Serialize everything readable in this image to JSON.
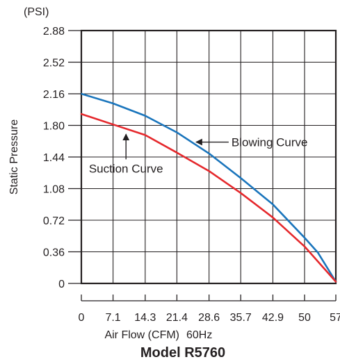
{
  "chart_data": {
    "type": "line",
    "title": "Model R5760",
    "xlabel": "Air Flow (CFM)",
    "xlabel_note": "60Hz",
    "ylabel": "Static Pressure",
    "yunit": "(PSI)",
    "x_ticks": [
      "0",
      "7.1",
      "14.3",
      "21.4",
      "28.6",
      "35.7",
      "42.9",
      "50",
      "57"
    ],
    "y_ticks": [
      "0",
      "0.36",
      "0.72",
      "1.08",
      "1.44",
      "1.80",
      "2.16",
      "2.52",
      "2.88"
    ],
    "xlim": [
      0,
      57
    ],
    "ylim": [
      0,
      2.88
    ],
    "grid": true,
    "series": [
      {
        "name": "Blowing Curve",
        "color": "#1a75bc",
        "x": [
          0,
          7.1,
          14.3,
          21.4,
          28.6,
          35.7,
          42.9,
          50,
          53,
          57
        ],
        "y": [
          2.16,
          2.05,
          1.91,
          1.72,
          1.48,
          1.2,
          0.9,
          0.52,
          0.35,
          0.02
        ]
      },
      {
        "name": "Suction Curve",
        "color": "#e5282c",
        "x": [
          0,
          7.1,
          14.3,
          21.4,
          28.6,
          35.7,
          42.9,
          50,
          57
        ],
        "y": [
          1.93,
          1.81,
          1.69,
          1.49,
          1.28,
          1.03,
          0.75,
          0.42,
          0.02
        ]
      }
    ],
    "annotations": [
      {
        "text": "Blowing Curve",
        "arrow_from": [
          33,
          1.61
        ],
        "arrow_to": [
          25.7,
          1.61
        ]
      },
      {
        "text": "Suction Curve",
        "arrow_from": [
          10,
          1.35
        ],
        "arrow_to": [
          10,
          1.7
        ]
      }
    ]
  }
}
